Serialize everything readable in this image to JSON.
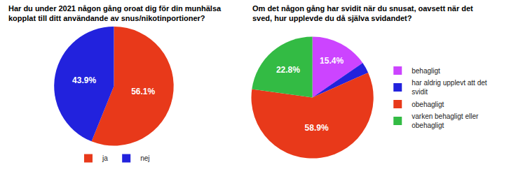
{
  "chart_data": [
    {
      "type": "pie",
      "title": "Har du under 2021 någon gång oroat dig för din munhälsa\nkopplat till ditt användande av snus/nikotinportioner?",
      "categories": [
        "ja",
        "nej"
      ],
      "values": [
        56.1,
        43.9
      ],
      "value_labels": [
        "56.1%",
        "43.9%"
      ],
      "colors": [
        "#E8391A",
        "#2222DD"
      ],
      "data_labels": true,
      "legend": "bottom"
    },
    {
      "type": "pie",
      "title": "Om det någon gång har svidit när du snusat, oavsett när det\nsved, hur upplevde du då själva svidandet?",
      "categories": [
        "behagligt",
        "har aldrig upplevt att det\nsvidit",
        "obehagligt",
        "varken behagligt eller\nobehagligt"
      ],
      "values": [
        15.4,
        2.9,
        58.9,
        22.8
      ],
      "value_labels": [
        "15.4%",
        null,
        "58.9%",
        "22.8%"
      ],
      "colors": [
        "#CC44FF",
        "#2222DD",
        "#E8391A",
        "#33BB44"
      ],
      "data_labels": true,
      "legend": "right"
    }
  ]
}
